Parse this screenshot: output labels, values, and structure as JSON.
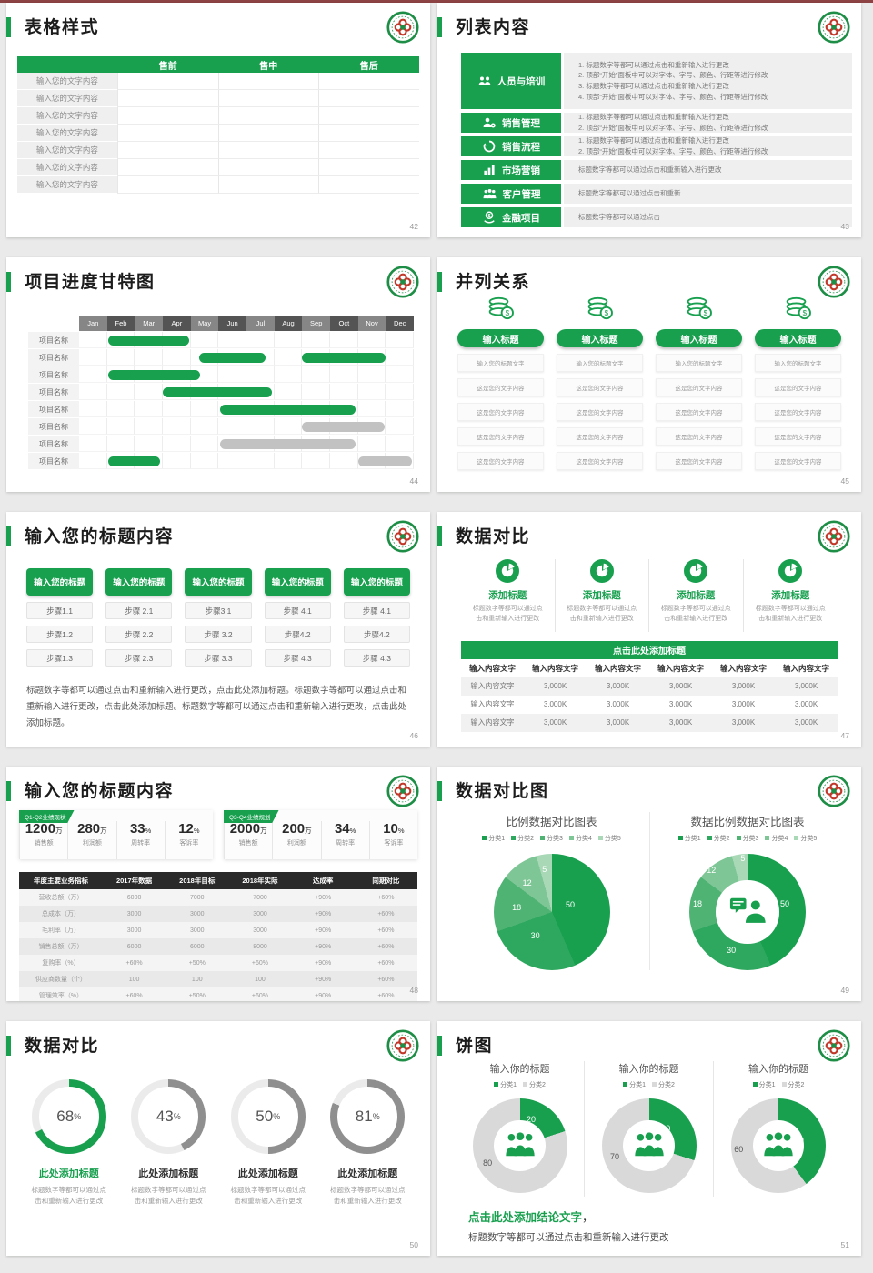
{
  "accent": "#18A04F",
  "top_line_color": "#8d4343",
  "page_background": "#e9eae9",
  "gray_bar": "#c2c2c2",
  "pie_palette": [
    "#18A04F",
    "#2FA85F",
    "#4FB374",
    "#7EC695",
    "#A8D8B6"
  ],
  "donut_gray": "#d9d9d9",
  "slides": {
    "s42": {
      "title": "表格样式",
      "page": "42",
      "table": {
        "headers": [
          "",
          "售前",
          "售中",
          "售后"
        ],
        "row_label": "输入您的文字内容",
        "row_count": 7
      }
    },
    "s43": {
      "title": "列表内容",
      "page": "43",
      "items": [
        {
          "icon": "people-training-icon",
          "label": "人员与培训",
          "lines": [
            "1.  标题数字等都可以通过点击和重新输入进行更改",
            "2.  顶部“开始”面板中可以对字体、字号、颜色、行距等进行修改",
            "3.  标题数字等都可以通过点击和重新输入进行更改",
            "4.  顶部“开始”面板中可以对字体、字号、颜色、行距等进行修改"
          ]
        },
        {
          "icon": "sales-management-icon",
          "label": "销售管理",
          "lines": [
            "1.  标题数字等都可以通过点击和重新输入进行更改",
            "2.  顶部“开始”面板中可以对字体、字号、颜色、行距等进行修改"
          ]
        },
        {
          "icon": "sales-process-icon",
          "label": "销售流程",
          "lines": [
            "1.  标题数字等都可以通过点击和重新输入进行更改",
            "2.  顶部“开始”面板中可以对字体、字号、颜色、行距等进行修改"
          ]
        },
        {
          "icon": "marketing-icon",
          "label": "市场营销",
          "lines": [
            "标题数字等都可以通过点击和重新输入进行更改"
          ]
        },
        {
          "icon": "customer-management-icon",
          "label": "客户管理",
          "lines": [
            "标题数字等都可以通过点击和重新"
          ]
        },
        {
          "icon": "finance-project-icon",
          "label": "金融项目",
          "lines": [
            "标题数字等都可以通过点击"
          ]
        }
      ]
    },
    "s44": {
      "title": "项目进度甘特图",
      "page": "44",
      "months": [
        "Jan",
        "Feb",
        "Mar",
        "Apr",
        "May",
        "Jun",
        "Jul",
        "Aug",
        "Sep",
        "Oct",
        "Nov",
        "Dec"
      ],
      "row_label": "项目名称",
      "row_count": 8,
      "bars": [
        {
          "row": 0,
          "start": 1.05,
          "end": 3.95,
          "color": "green"
        },
        {
          "row": 1,
          "start": 4.3,
          "end": 6.7,
          "color": "green"
        },
        {
          "row": 1,
          "start": 8.0,
          "end": 11.0,
          "color": "green"
        },
        {
          "row": 2,
          "start": 1.05,
          "end": 4.35,
          "color": "green"
        },
        {
          "row": 3,
          "start": 3.0,
          "end": 6.9,
          "color": "green"
        },
        {
          "row": 4,
          "start": 5.05,
          "end": 9.9,
          "color": "green"
        },
        {
          "row": 5,
          "start": 8.0,
          "end": 10.95,
          "color": "gray"
        },
        {
          "row": 6,
          "start": 5.05,
          "end": 9.9,
          "color": "gray"
        },
        {
          "row": 7,
          "start": 1.05,
          "end": 2.9,
          "color": "green"
        },
        {
          "row": 7,
          "start": 10.0,
          "end": 11.95,
          "color": "gray"
        }
      ]
    },
    "s45": {
      "title": "并列关系",
      "page": "45",
      "columns": [
        {
          "icon": "coins-icon",
          "pill": "输入标题",
          "rows": [
            "输入您的标题文字",
            "这是您的文字内容",
            "这是您的文字内容",
            "这是您的文字内容",
            "这是您的文字内容"
          ]
        },
        {
          "icon": "coins-icon",
          "pill": "输入标题",
          "rows": [
            "输入您的标题文字",
            "这是您的文字内容",
            "这是您的文字内容",
            "这是您的文字内容",
            "这是您的文字内容"
          ]
        },
        {
          "icon": "coins-icon",
          "pill": "输入标题",
          "rows": [
            "输入您的标题文字",
            "这是您的文字内容",
            "这是您的文字内容",
            "这是您的文字内容",
            "这是您的文字内容"
          ]
        },
        {
          "icon": "coins-icon",
          "pill": "输入标题",
          "rows": [
            "输入您的标题文字",
            "这是您的文字内容",
            "这是您的文字内容",
            "这是您的文字内容",
            "这是您的文字内容"
          ]
        }
      ]
    },
    "s46": {
      "title": "输入您的标题内容",
      "page": "46",
      "columns": [
        {
          "header": "输入您的标题",
          "steps": [
            "步骤1.1",
            "步骤1.2",
            "步骤1.3"
          ]
        },
        {
          "header": "输入您的标题",
          "steps": [
            "步骤 2.1",
            "步骤 2.2",
            "步骤 2.3"
          ]
        },
        {
          "header": "输入您的标题",
          "steps": [
            "步骤3.1",
            "步骤 3.2",
            "步骤 3.3"
          ]
        },
        {
          "header": "输入您的标题",
          "steps": [
            "步骤 4.1",
            "步骤4.2",
            "步骤 4.3"
          ]
        },
        {
          "header": "输入您的标题",
          "steps": [
            "步骤 4.1",
            "步骤4.2",
            "步骤 4.3"
          ]
        }
      ],
      "paragraph": "标题数字等都可以通过点击和重新输入进行更改，点击此处添加标题。标题数字等都可以通过点击和重新输入进行更改，点击此处添加标题。标题数字等都可以通过点击和重新输入进行更改，点击此处添加标题。"
    },
    "s47": {
      "title": "数据对比",
      "page": "47",
      "features": [
        {
          "icon": "pie-icon",
          "title": "添加标题",
          "desc": "标题数字等都可以通过点击和重新输入进行更改"
        },
        {
          "icon": "pie-icon",
          "title": "添加标题",
          "desc": "标题数字等都可以通过点击和重新输入进行更改"
        },
        {
          "icon": "pie-icon",
          "title": "添加标题",
          "desc": "标题数字等都可以通过点击和重新输入进行更改"
        },
        {
          "icon": "pie-icon",
          "title": "添加标题",
          "desc": "标题数字等都可以通过点击和重新输入进行更改"
        }
      ],
      "band": "点击此处添加标题",
      "table": {
        "headers": [
          "输入内容文字",
          "输入内容文字",
          "输入内容文字",
          "输入内容文字",
          "输入内容文字",
          "输入内容文字"
        ],
        "rows": [
          [
            "输入内容文字",
            "3,000K",
            "3,000K",
            "3,000K",
            "3,000K",
            "3,000K"
          ],
          [
            "输入内容文字",
            "3,000K",
            "3,000K",
            "3,000K",
            "3,000K",
            "3,000K"
          ],
          [
            "输入内容文字",
            "3,000K",
            "3,000K",
            "3,000K",
            "3,000K",
            "3,000K"
          ]
        ]
      }
    },
    "s48": {
      "title": "输入您的标题内容",
      "page": "48",
      "panels": [
        {
          "tag": "Q1-Q2业绩现状",
          "stats": [
            {
              "value": "1200",
              "unit": "万",
              "label": "销售额"
            },
            {
              "value": "280",
              "unit": "万",
              "label": "利润额"
            },
            {
              "value": "33",
              "unit": "%",
              "label": "周转率"
            },
            {
              "value": "12",
              "unit": "%",
              "label": "客诉率"
            }
          ]
        },
        {
          "tag": "Q3-Q4业绩规划",
          "stats": [
            {
              "value": "2000",
              "unit": "万",
              "label": "销售额"
            },
            {
              "value": "200",
              "unit": "万",
              "label": "利润额"
            },
            {
              "value": "34",
              "unit": "%",
              "label": "周转率"
            },
            {
              "value": "10",
              "unit": "%",
              "label": "客诉率"
            }
          ]
        }
      ],
      "table": {
        "headers": [
          "年度主要业务指标",
          "2017年数据",
          "2018年目标",
          "2018年实际",
          "达成率",
          "同期对比"
        ],
        "rows": [
          [
            "营收总额（万）",
            "6000",
            "7000",
            "7000",
            "+90%",
            "+60%"
          ],
          [
            "总成本（万）",
            "3000",
            "3000",
            "3000",
            "+90%",
            "+60%"
          ],
          [
            "毛利率（万）",
            "3000",
            "3000",
            "3000",
            "+90%",
            "+60%"
          ],
          [
            "销售总额（万）",
            "6000",
            "6000",
            "8000",
            "+90%",
            "+60%"
          ],
          [
            "复购率（%）",
            "+60%",
            "+50%",
            "+60%",
            "+90%",
            "+60%"
          ],
          [
            "供应商数量（个）",
            "100",
            "100",
            "100",
            "+90%",
            "+60%"
          ],
          [
            "管理效率（%）",
            "+60%",
            "+50%",
            "+60%",
            "+90%",
            "+60%"
          ]
        ]
      }
    },
    "s49": {
      "title": "数据对比图",
      "page": "49",
      "legend": [
        "分类1",
        "分类2",
        "分类3",
        "分类4",
        "分类5"
      ],
      "values": [
        50,
        30,
        18,
        12,
        5
      ],
      "left_title": "比例数据对比图表",
      "right_title": "数据比例数据对比图表"
    },
    "s50": {
      "title": "数据对比",
      "page": "50",
      "gauges": [
        {
          "percent": 68,
          "green": true,
          "title": "此处添加标题",
          "desc": "标题数字等都可以通过点击和重新输入进行更改"
        },
        {
          "percent": 43,
          "green": false,
          "title": "此处添加标题",
          "desc": "标题数字等都可以通过点击和重新输入进行更改"
        },
        {
          "percent": 50,
          "green": false,
          "title": "此处添加标题",
          "desc": "标题数字等都可以通过点击和重新输入进行更改"
        },
        {
          "percent": 81,
          "green": false,
          "title": "此处添加标题",
          "desc": "标题数字等都可以通过点击和重新输入进行更改"
        }
      ]
    },
    "s51": {
      "title": "饼图",
      "page": "51",
      "legend": [
        "分类1",
        "分类2"
      ],
      "donuts": [
        {
          "title": "输入你的标题",
          "green": 20,
          "gray": 80
        },
        {
          "title": "输入你的标题",
          "green": 30,
          "gray": 70
        },
        {
          "title": "输入你的标题",
          "green": 40,
          "gray": 60
        }
      ],
      "conclusion_title": "点击此处添加结论文字",
      "conclusion_comma": "，",
      "conclusion_desc": "标题数字等都可以通过点击和重新输入进行更改"
    }
  },
  "chart_data": [
    {
      "type": "gantt",
      "slide": "44",
      "categories": [
        "Jan",
        "Feb",
        "Mar",
        "Apr",
        "May",
        "Jun",
        "Jul",
        "Aug",
        "Sep",
        "Oct",
        "Nov",
        "Dec"
      ],
      "bars": [
        {
          "row": 1,
          "start": 1.05,
          "end": 3.95
        },
        {
          "row": 2,
          "start": 4.3,
          "end": 6.7
        },
        {
          "row": 2,
          "start": 8.0,
          "end": 11.0
        },
        {
          "row": 3,
          "start": 1.05,
          "end": 4.35
        },
        {
          "row": 4,
          "start": 3.0,
          "end": 6.9
        },
        {
          "row": 5,
          "start": 5.05,
          "end": 9.9
        },
        {
          "row": 6,
          "start": 8.0,
          "end": 10.95
        },
        {
          "row": 7,
          "start": 5.05,
          "end": 9.9
        },
        {
          "row": 8,
          "start": 1.05,
          "end": 2.9
        },
        {
          "row": 8,
          "start": 10.0,
          "end": 11.95
        }
      ]
    },
    {
      "type": "pie",
      "slide": "49",
      "title": "比例数据对比图表",
      "labels": [
        "分类1",
        "分类2",
        "分类3",
        "分类4",
        "分类5"
      ],
      "values": [
        50,
        30,
        18,
        12,
        5
      ]
    },
    {
      "type": "pie",
      "slide": "49",
      "subtype": "donut",
      "title": "数据比例数据对比图表",
      "labels": [
        "分类1",
        "分类2",
        "分类3",
        "分类4",
        "分类5"
      ],
      "values": [
        50,
        30,
        18,
        12,
        5
      ]
    },
    {
      "type": "pie",
      "slide": "50",
      "subtype": "gauge",
      "values": [
        68,
        43,
        50,
        81
      ],
      "unit": "%"
    },
    {
      "type": "pie",
      "slide": "51",
      "subtype": "donut",
      "labels": [
        "分类1",
        "分类2"
      ],
      "series": [
        [
          20,
          80
        ],
        [
          30,
          70
        ],
        [
          40,
          60
        ]
      ]
    }
  ]
}
